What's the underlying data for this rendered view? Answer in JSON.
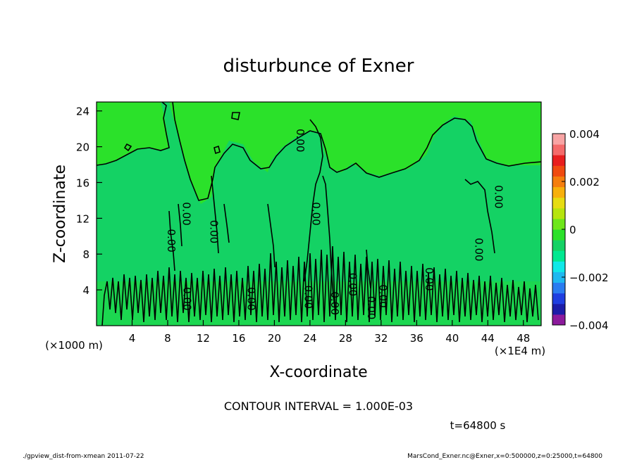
{
  "chart_data": {
    "type": "heatmap",
    "title": "disturbunce of Exner",
    "xlabel": "X-coordinate",
    "ylabel": "Z-coordinate",
    "x_unit": "(×1E4 m)",
    "y_unit": "(×1000 m)",
    "x_ticks": [
      "4",
      "8",
      "12",
      "16",
      "20",
      "24",
      "28",
      "32",
      "36",
      "40",
      "44",
      "48"
    ],
    "y_ticks": [
      "4",
      "8",
      "12",
      "16",
      "20",
      "24"
    ],
    "xlim": [
      0,
      50
    ],
    "ylim": [
      0,
      25
    ],
    "colorbar": {
      "ticks": [
        "0.004",
        "0.002",
        "0",
        "−0.002",
        "−0.004"
      ],
      "range": [
        -0.004,
        0.004
      ],
      "colors": [
        "#8c1a9c",
        "#1c1ca8",
        "#1f3ee0",
        "#2a7cf0",
        "#1fb8f0",
        "#10e8e8",
        "#00e890",
        "#14d264",
        "#2be12a",
        "#6ee61a",
        "#b6e40e",
        "#e6dc12",
        "#f7b00c",
        "#f57e0e",
        "#f04a10",
        "#e81e1e",
        "#f46a6a",
        "#f8a4a4"
      ]
    },
    "contour_interval": "CONTOUR INTERVAL = 1.000E-03",
    "contour_label": "0.00",
    "contour_labels": [
      {
        "x": 8.0,
        "y": 9.5,
        "text": "0.00"
      },
      {
        "x": 9.7,
        "y": 12.5,
        "text": "0.00"
      },
      {
        "x": 12.8,
        "y": 10.5,
        "text": "0.00"
      },
      {
        "x": 24.3,
        "y": 12.5,
        "text": "0.00"
      },
      {
        "x": 42.6,
        "y": 8.5,
        "text": "0.00"
      },
      {
        "x": 44.8,
        "y": 14.4,
        "text": "0.00"
      },
      {
        "x": 9.8,
        "y": 3.0,
        "text": "0.00"
      },
      {
        "x": 17.0,
        "y": 3.0,
        "text": "0.00"
      },
      {
        "x": 23.4,
        "y": 3.2,
        "text": "0.00"
      },
      {
        "x": 26.4,
        "y": 2.5,
        "text": "0.00"
      },
      {
        "x": 28.4,
        "y": 4.6,
        "text": "0.00"
      },
      {
        "x": 30.5,
        "y": 2.0,
        "text": "0.00"
      },
      {
        "x": 31.8,
        "y": 3.3,
        "text": "0.00"
      },
      {
        "x": 37.0,
        "y": 5.2,
        "text": "0.00"
      },
      {
        "x": 22.5,
        "y": 20.7,
        "text": "0.00"
      }
    ],
    "time": "t=64800 s",
    "field_colors": {
      "base": "#14d264",
      "positive": "#2be12a"
    }
  },
  "footer": {
    "left": "./gpview_dist-from-xmean  2011-07-22",
    "right": "MarsCond_Exner.nc@Exner,x=0:500000,z=0:25000,t=64800"
  }
}
